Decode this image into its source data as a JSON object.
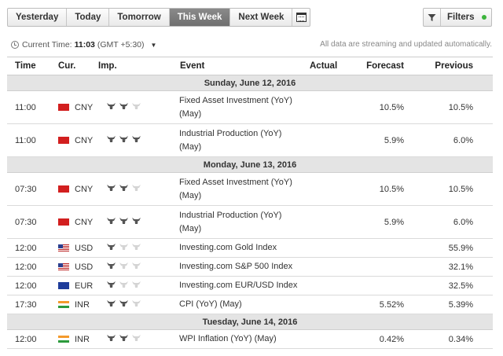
{
  "toolbar": {
    "tabs": [
      "Yesterday",
      "Today",
      "Tomorrow",
      "This Week",
      "Next Week"
    ],
    "active_tab": "This Week",
    "filters_label": "Filters",
    "filter_status_color": "#3cb43c"
  },
  "status": {
    "current_time_label": "Current Time:",
    "current_time": "11:03",
    "timezone": "(GMT +5:30)",
    "streaming_note": "All data are streaming and updated automatically."
  },
  "table": {
    "headers": {
      "time": "Time",
      "currency": "Cur.",
      "importance": "Imp.",
      "event": "Event",
      "actual": "Actual",
      "forecast": "Forecast",
      "previous": "Previous"
    },
    "days": [
      {
        "label": "Sunday, June 12, 2016",
        "rows": [
          {
            "time": "11:00",
            "flag": "cny",
            "currency": "CNY",
            "importance": 2,
            "event_line1": "Fixed Asset Investment (YoY)",
            "event_line2": "(May)",
            "actual": "",
            "forecast": "10.5%",
            "previous": "10.5%"
          },
          {
            "time": "11:00",
            "flag": "cny",
            "currency": "CNY",
            "importance": 3,
            "event_line1": "Industrial Production (YoY)",
            "event_line2": "(May)",
            "actual": "",
            "forecast": "5.9%",
            "previous": "6.0%"
          }
        ]
      },
      {
        "label": "Monday, June 13, 2016",
        "rows": [
          {
            "time": "07:30",
            "flag": "cny",
            "currency": "CNY",
            "importance": 2,
            "event_line1": "Fixed Asset Investment (YoY)",
            "event_line2": "(May)",
            "actual": "",
            "forecast": "10.5%",
            "previous": "10.5%"
          },
          {
            "time": "07:30",
            "flag": "cny",
            "currency": "CNY",
            "importance": 3,
            "event_line1": "Industrial Production (YoY)",
            "event_line2": "(May)",
            "actual": "",
            "forecast": "5.9%",
            "previous": "6.0%"
          },
          {
            "time": "12:00",
            "flag": "usd",
            "currency": "USD",
            "importance": 1,
            "event_line1": "Investing.com Gold Index",
            "event_line2": "",
            "actual": "",
            "forecast": "",
            "previous": "55.9%"
          },
          {
            "time": "12:00",
            "flag": "usd",
            "currency": "USD",
            "importance": 1,
            "event_line1": "Investing.com S&P 500 Index",
            "event_line2": "",
            "actual": "",
            "forecast": "",
            "previous": "32.1%"
          },
          {
            "time": "12:00",
            "flag": "eur",
            "currency": "EUR",
            "importance": 1,
            "event_line1": "Investing.com EUR/USD Index",
            "event_line2": "",
            "actual": "",
            "forecast": "",
            "previous": "32.5%"
          },
          {
            "time": "17:30",
            "flag": "inr",
            "currency": "INR",
            "importance": 2,
            "event_line1": "CPI (YoY) (May)",
            "event_line2": "",
            "actual": "",
            "forecast": "5.52%",
            "previous": "5.39%"
          }
        ]
      },
      {
        "label": "Tuesday, June 14, 2016",
        "rows": [
          {
            "time": "12:00",
            "flag": "inr",
            "currency": "INR",
            "importance": 2,
            "event_line1": "WPI Inflation (YoY) (May)",
            "event_line2": "",
            "actual": "",
            "forecast": "0.42%",
            "previous": "0.34%"
          }
        ]
      }
    ]
  }
}
